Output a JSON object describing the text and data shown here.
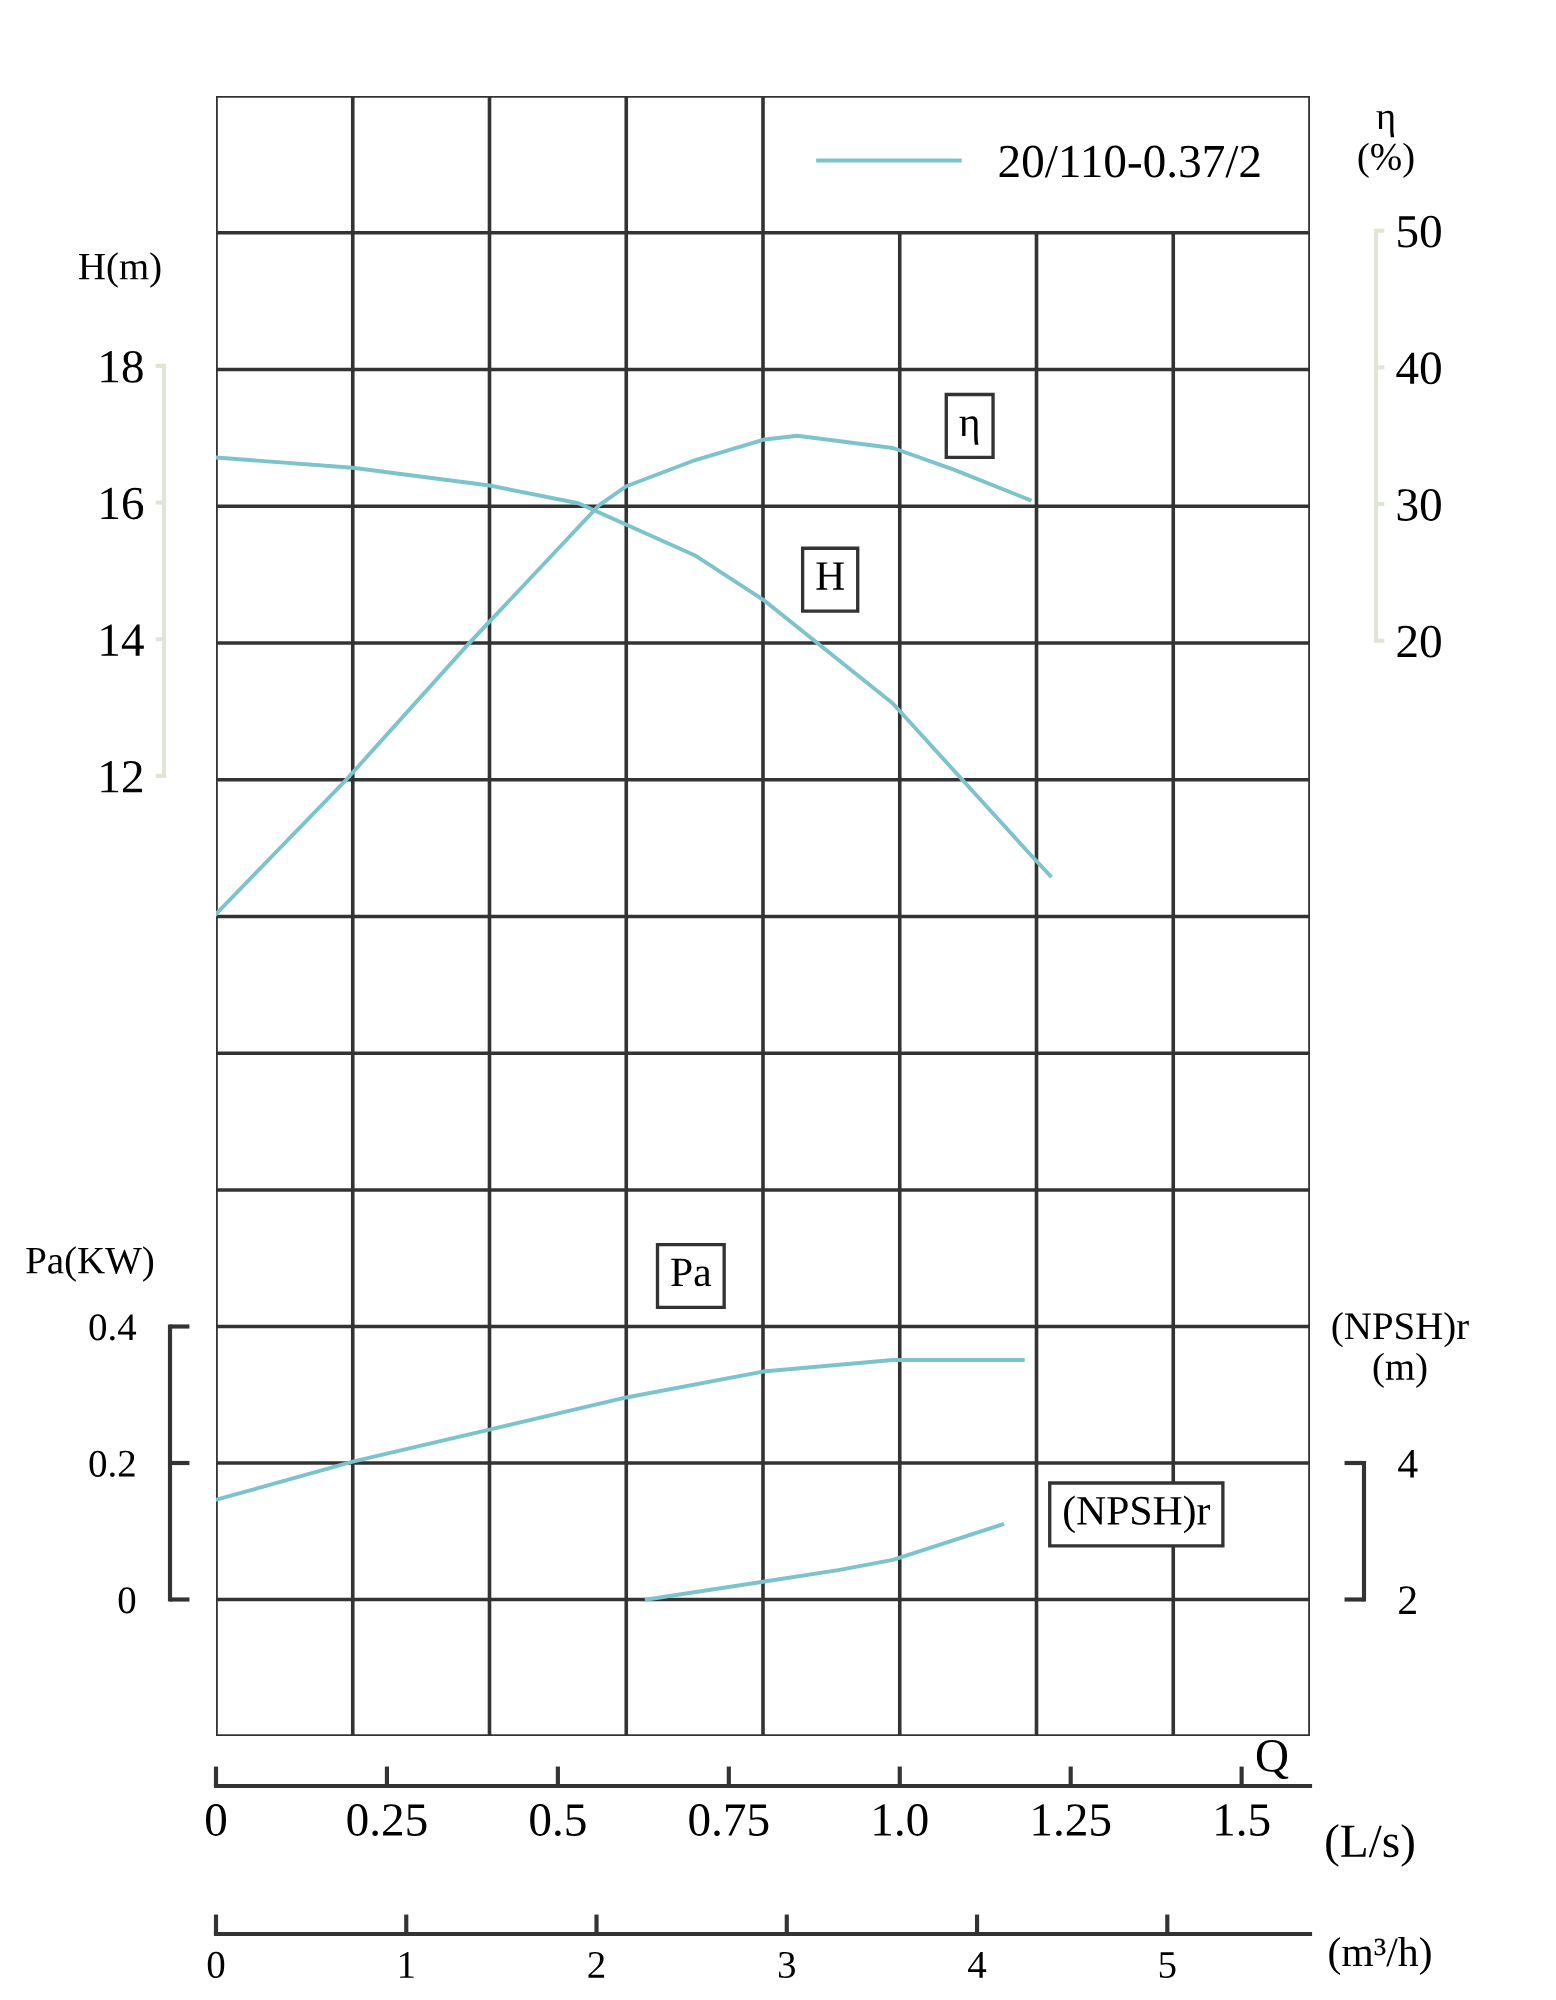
{
  "chart_data": [
    {
      "type": "line",
      "legend_title": "20/110-0.37/2",
      "legend": "top right",
      "grid": true,
      "tick_labels": "y",
      "ylabel": "H(m)",
      "y2label": "η\n(%)",
      "xlim": [
        0,
        1.6
      ],
      "ylim": [
        5.94,
        21.95
      ],
      "yticks": [
        12,
        14,
        16,
        18
      ],
      "y2lim": [
        -20.2,
        59.86
      ],
      "y2ticks": [
        20,
        30,
        40,
        50
      ],
      "series": [
        {
          "name": "H",
          "color": "#7cc3cb",
          "x": [
            0,
            0.2,
            0.4,
            0.53,
            0.7,
            0.8,
            0.99,
            1.19,
            1.22
          ],
          "values": [
            16.66,
            16.51,
            16.25,
            15.99,
            15.23,
            14.58,
            13.06,
            10.86,
            10.54
          ]
        },
        {
          "name": "η",
          "axis": "y2",
          "color": "#7cc3cb",
          "x": [
            0,
            0.19,
            0.37,
            0.56,
            0.6,
            0.7,
            0.8,
            0.85,
            0.99,
            1.08,
            1.19
          ],
          "values": [
            0,
            9.8,
            19.8,
            29.9,
            31.3,
            33.2,
            34.7,
            35.0,
            34.1,
            32.5,
            30.3
          ]
        }
      ]
    },
    {
      "type": "line",
      "grid": true,
      "xlabel": "(L/s)",
      "x2label": "(m³/h)",
      "ylabel": "Pa(KW)",
      "y2label": "(NPSH)r\n(m)",
      "annotations": [
        "Q"
      ],
      "xlim": [
        0,
        1.6
      ],
      "xticks": [
        0,
        0.25,
        0.5,
        0.75,
        {
          "value": 1,
          "label": "1.0"
        },
        1.25,
        1.5
      ],
      "x2lim": [
        0,
        5.75
      ],
      "x2ticks": [
        0,
        1,
        2,
        3,
        4,
        5
      ],
      "ylim": [
        -0.2,
        0.6
      ],
      "yticks": [
        0,
        0.2,
        0.4
      ],
      "y2lim": [
        0,
        8
      ],
      "y2ticks": [
        2,
        4
      ],
      "series": [
        {
          "name": "Pa",
          "color": "#7cc3cb",
          "x": [
            0,
            0.2,
            0.4,
            0.6,
            0.8,
            0.99,
            1.18
          ],
          "values": [
            0.146,
            0.202,
            0.249,
            0.296,
            0.334,
            0.351,
            0.351
          ]
        },
        {
          "name": "(NPSH)r",
          "axis": "y2",
          "color": "#7cc3cb",
          "x": [
            0.63,
            0.8,
            0.91,
            0.99,
            1.15
          ],
          "values": [
            2.0,
            2.26,
            2.43,
            2.58,
            3.1
          ]
        }
      ]
    }
  ]
}
